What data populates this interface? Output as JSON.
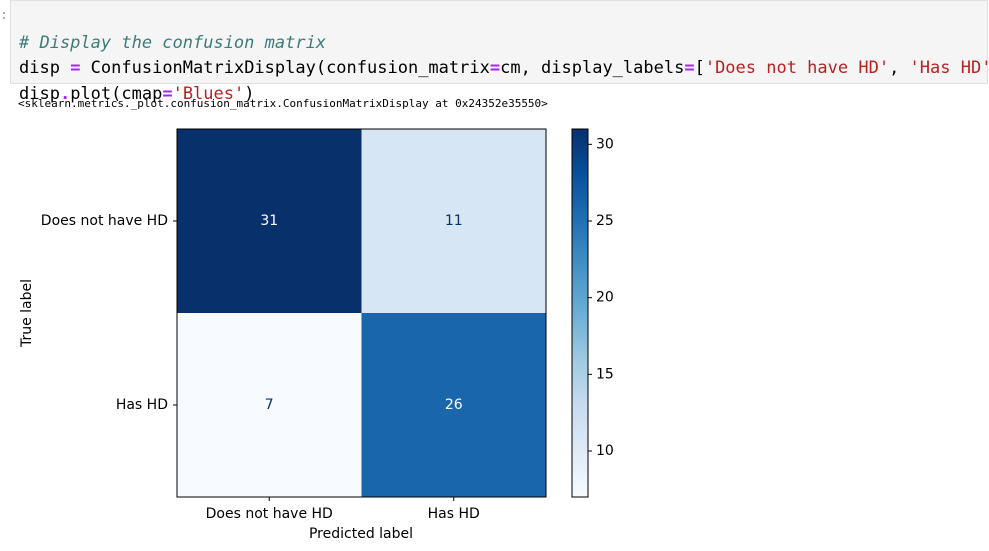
{
  "prompt": ":",
  "code": {
    "lines": [
      [
        "# Display the confusion matrix"
      ],
      [
        "disp ",
        "=",
        " ConfusionMatrixDisplay(confusion_matrix",
        "=",
        "cm, display_labels",
        "=",
        "[",
        "'Does not have HD'",
        ", ",
        "'Has HD'",
        "])"
      ],
      [
        "disp",
        ".",
        "plot(cmap",
        "=",
        "'Blues'",
        ")"
      ]
    ]
  },
  "output_text": "<sklearn.metrics._plot.confusion_matrix.ConfusionMatrixDisplay at 0x24352e35550>",
  "chart_data": {
    "type": "heatmap",
    "xlabel": "Predicted label",
    "ylabel": "True label",
    "x_categories": [
      "Does not have HD",
      "Has HD"
    ],
    "y_categories": [
      "Does not have HD",
      "Has HD"
    ],
    "values": [
      [
        31,
        11
      ],
      [
        7,
        26
      ]
    ],
    "colormap": "Blues",
    "clim": [
      7,
      31
    ],
    "colorbar_ticks": [
      10,
      15,
      20,
      25,
      30
    ]
  }
}
